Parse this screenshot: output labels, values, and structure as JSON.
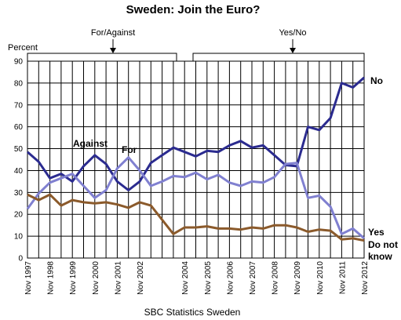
{
  "chart_data": {
    "type": "line",
    "title": "Sweden: Join the Euro?",
    "ylabel": "Percent",
    "ylim": [
      0,
      90
    ],
    "yticks": [
      0,
      10,
      20,
      30,
      40,
      50,
      60,
      70,
      80,
      90
    ],
    "grid": true,
    "x_labels": [
      "Nov 1997",
      "Nov 1998",
      "Nov 1999",
      "Nov 2000",
      "Nov 2001",
      "Nov 2002",
      "Nov 2004",
      "Nov 2005",
      "Nov 2006",
      "Nov 2007",
      "Nov 2008",
      "Nov 2009",
      "Nov 2010",
      "Nov 2011",
      "Nov 2012"
    ],
    "brackets": [
      {
        "label": "For/Against"
      },
      {
        "label": "Yes/No"
      }
    ],
    "series": [
      {
        "name": "No",
        "color": "#2b2b8f",
        "values": [
          48.5,
          44,
          36.5,
          38.5,
          35,
          42,
          47,
          43,
          35,
          31,
          35,
          43.5,
          47,
          50.5,
          48.5,
          46.5,
          49,
          48.5,
          51.5,
          53.5,
          50.5,
          51.5,
          47,
          42.5,
          42,
          60,
          58.5,
          64,
          80,
          78,
          82.5
        ]
      },
      {
        "name": "Yes",
        "color": "#8080d0",
        "values": [
          22.5,
          29.5,
          34.5,
          36.5,
          38.5,
          33,
          27.5,
          31,
          41,
          46,
          40,
          33,
          35,
          37.5,
          37,
          39,
          36,
          38,
          34.5,
          33,
          35,
          34.5,
          37,
          43,
          43.5,
          27.5,
          28.5,
          23.5,
          11,
          13.5,
          9
        ]
      },
      {
        "name": "Do not know",
        "color": "#8b5a2b",
        "values": [
          29,
          26.5,
          29,
          24,
          26.5,
          25.5,
          25,
          25.5,
          24.5,
          23,
          25.5,
          24,
          17.5,
          11,
          14,
          14,
          14.5,
          13.5,
          13.5,
          13,
          14,
          13.5,
          15,
          15,
          14,
          12,
          13,
          12.5,
          8.5,
          9,
          8
        ]
      }
    ],
    "annotations": [
      "Against",
      "For"
    ],
    "source": "SBC Statistics Sweden"
  }
}
